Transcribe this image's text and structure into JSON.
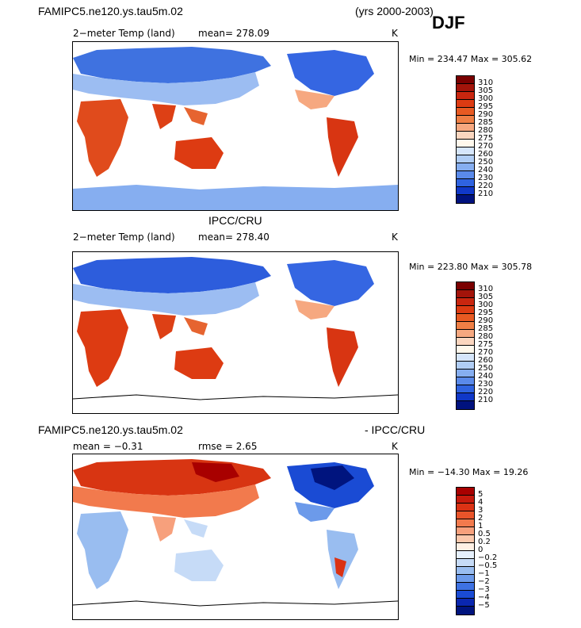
{
  "header": {
    "case_name": "FAMIPC5.ne120.ys.tau5m.02",
    "years": "(yrs 2000-2003)",
    "season": "DJF"
  },
  "panel1": {
    "variable": "2−meter Temp (land)",
    "mean_text": "mean= 278.09",
    "units": "K",
    "minmax": "Min = 234.47  Max = 305.62"
  },
  "panel2": {
    "title": "IPCC/CRU",
    "variable": "2−meter Temp (land)",
    "mean_text": "mean= 278.40",
    "units": "K",
    "minmax": "Min = 223.80  Max = 305.78"
  },
  "panel3": {
    "title_left": "FAMIPC5.ne120.ys.tau5m.02",
    "title_right": "- IPCC/CRU",
    "mean_text": "mean =   −0.31",
    "rmse_text": "rmse =     2.65",
    "units": "K",
    "minmax": "Min = −14.30  Max =   19.26"
  },
  "colorbar_abs": {
    "labels": [
      "310",
      "305",
      "300",
      "295",
      "290",
      "285",
      "280",
      "275",
      "270",
      "260",
      "250",
      "240",
      "230",
      "220",
      "210"
    ],
    "colors": [
      "#7a0000",
      "#a3140a",
      "#c9260f",
      "#dd3b12",
      "#e85a22",
      "#ef7f45",
      "#f6a880",
      "#fbd6bf",
      "#fff8ec",
      "#d6e6fb",
      "#b0cdf5",
      "#86aef0",
      "#5a8aea",
      "#2f63e0",
      "#1038c8",
      "#00127e"
    ]
  },
  "colorbar_diff": {
    "labels": [
      "5",
      "4",
      "3",
      "2",
      "1",
      "0.5",
      "0.2",
      "0",
      "−0.2",
      "−0.5",
      "−1",
      "−2",
      "−3",
      "−4",
      "−5"
    ],
    "colors": [
      "#a80000",
      "#c61a0d",
      "#db3214",
      "#e9542a",
      "#f27a4d",
      "#f7a07c",
      "#fbc8ac",
      "#fff0e4",
      "#e6f0fc",
      "#c6dbf7",
      "#99bdf0",
      "#6c9aea",
      "#3e72e3",
      "#1a4bd4",
      "#0a27b0",
      "#00147e"
    ]
  }
}
